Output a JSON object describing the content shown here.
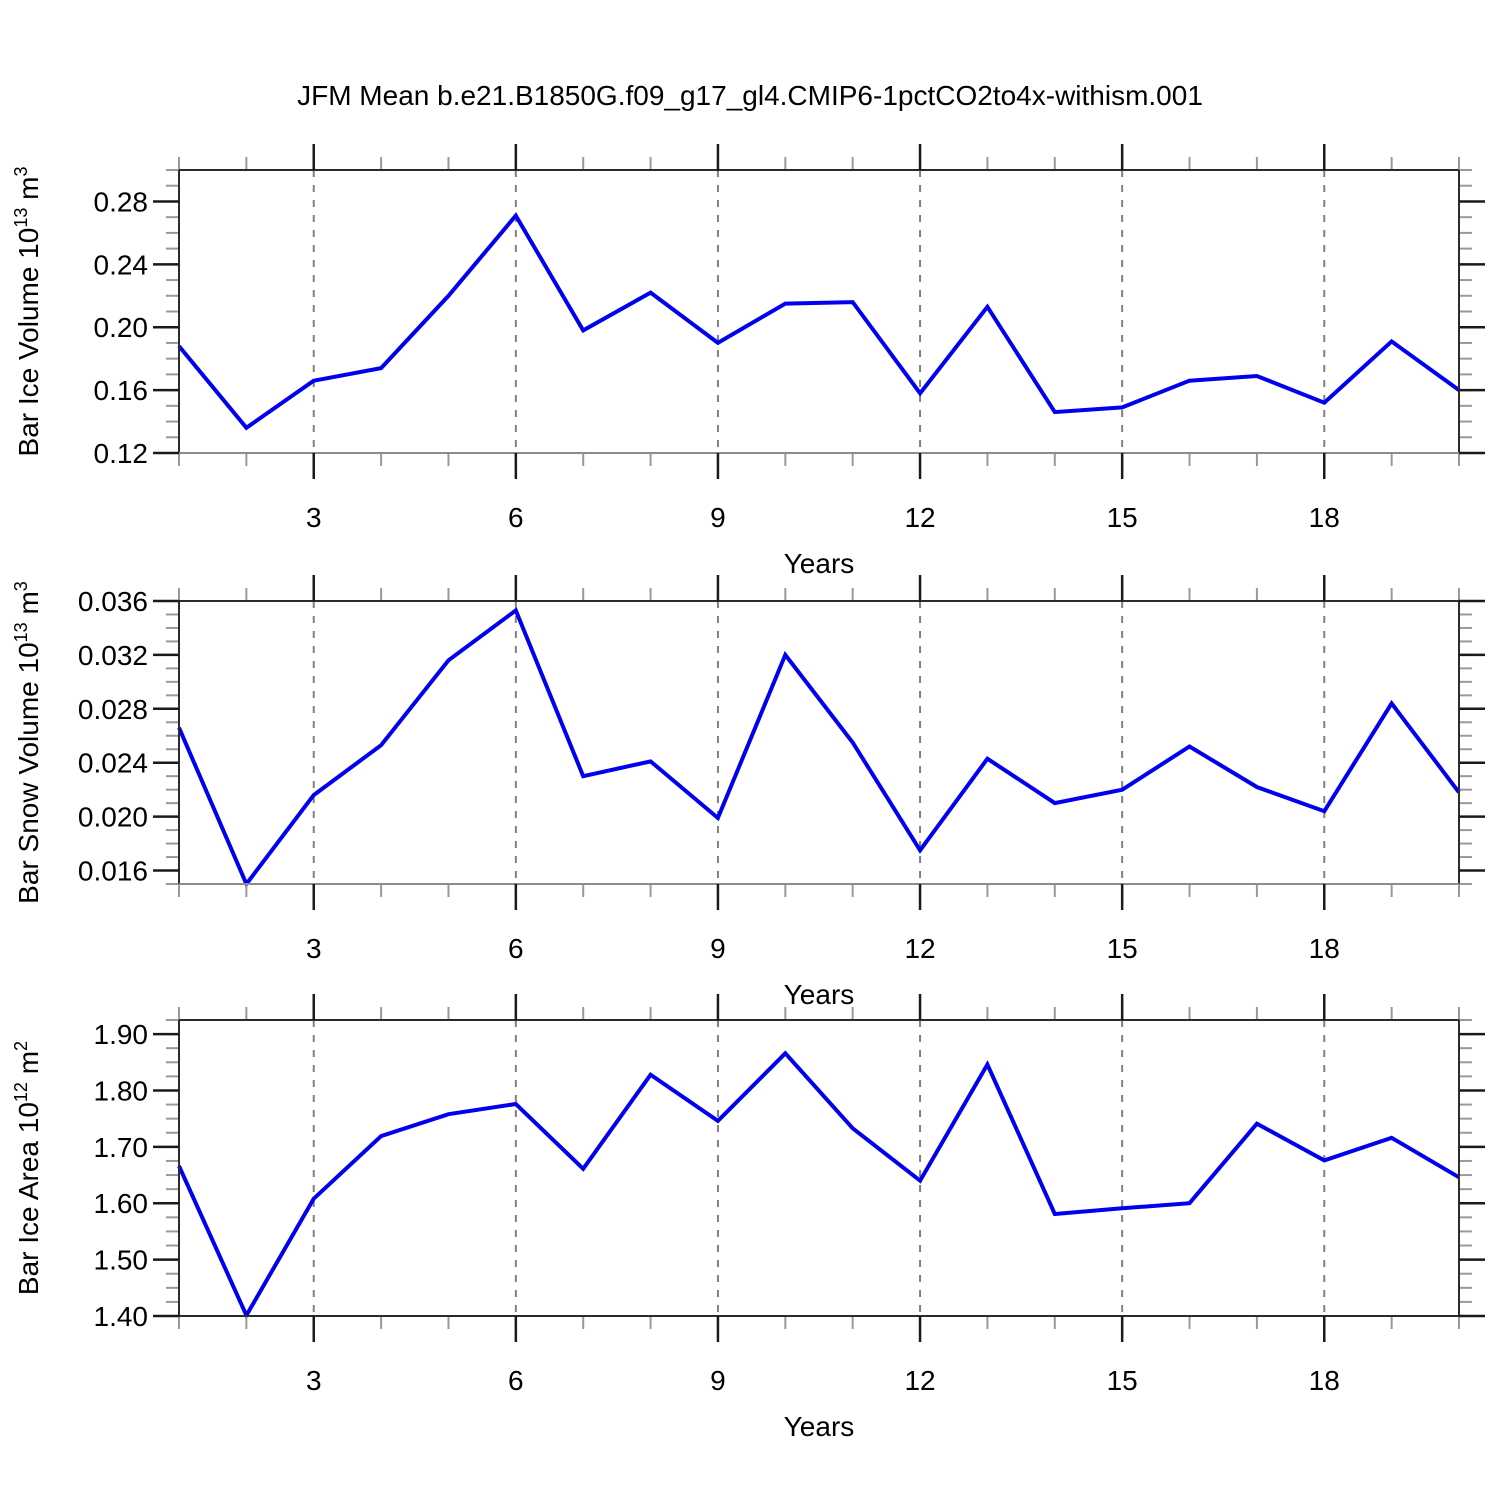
{
  "title": "JFM Mean b.e21.B1850G.f09_g17_gl4.CMIP6-1pctCO2to4x-withism.001",
  "x_axis": {
    "label": "Years",
    "range": [
      1,
      20
    ],
    "major_ticks": [
      3,
      6,
      9,
      12,
      15,
      18
    ],
    "minor_step": 1
  },
  "years": [
    1,
    2,
    3,
    4,
    5,
    6,
    7,
    8,
    9,
    10,
    11,
    12,
    13,
    14,
    15,
    16,
    17,
    18,
    19,
    20
  ],
  "colors": {
    "line": "#0000ee",
    "grid": "#808080",
    "frame": "#2b2b2b",
    "frame_bottom_gray": "#8c8c8c",
    "major_tick": "#1a1a1a",
    "minor_tick": "#999999",
    "text": "#000000"
  },
  "chart_data": [
    {
      "id": "bar-ice-volume",
      "type": "line",
      "name": "Bar Ice Volume 10^13 m^3",
      "ylabel_parts": [
        {
          "text": "Bar Ice Volume 10"
        },
        {
          "text": "13",
          "sup": true
        },
        {
          "text": " m"
        },
        {
          "text": "3",
          "sup": true
        }
      ],
      "ylim": [
        0.12,
        0.3
      ],
      "yticks": {
        "values": [
          0.12,
          0.16,
          0.2,
          0.24,
          0.28
        ],
        "labels": [
          "0.12",
          "0.16",
          "0.20",
          "0.24",
          "0.28"
        ]
      },
      "y_minor_step": 0.01,
      "bottom_axis": "gray",
      "values": [
        0.188,
        0.136,
        0.166,
        0.174,
        0.22,
        0.271,
        0.198,
        0.222,
        0.19,
        0.215,
        0.216,
        0.158,
        0.213,
        0.146,
        0.149,
        0.166,
        0.169,
        0.152,
        0.191,
        0.16
      ]
    },
    {
      "id": "bar-snow-volume",
      "type": "line",
      "name": "Bar Snow Volume 10^13 m^3",
      "ylabel_parts": [
        {
          "text": "Bar Snow Volume 10"
        },
        {
          "text": "13",
          "sup": true
        },
        {
          "text": " m"
        },
        {
          "text": "3",
          "sup": true
        }
      ],
      "ylim": [
        0.015,
        0.036
      ],
      "yticks": {
        "values": [
          0.016,
          0.02,
          0.024,
          0.028,
          0.032,
          0.036
        ],
        "labels": [
          "0.016",
          "0.020",
          "0.024",
          "0.028",
          "0.032",
          "0.036"
        ]
      },
      "y_minor_step": 0.001,
      "bottom_axis": "gray",
      "values": [
        0.0266,
        0.015,
        0.0216,
        0.0253,
        0.0316,
        0.0353,
        0.023,
        0.0241,
        0.0199,
        0.032,
        0.0255,
        0.0175,
        0.0243,
        0.021,
        0.022,
        0.0252,
        0.0222,
        0.0204,
        0.0284,
        0.0218
      ]
    },
    {
      "id": "bar-ice-area",
      "type": "line",
      "name": "Bar Ice Area 10^12 m^2",
      "ylabel_parts": [
        {
          "text": "Bar Ice Area 10"
        },
        {
          "text": "12",
          "sup": true
        },
        {
          "text": " m"
        },
        {
          "text": "2",
          "sup": true
        }
      ],
      "ylim": [
        1.4,
        1.925
      ],
      "yticks": {
        "values": [
          1.4,
          1.5,
          1.6,
          1.7,
          1.8,
          1.9
        ],
        "labels": [
          "1.40",
          "1.50",
          "1.60",
          "1.70",
          "1.80",
          "1.90"
        ]
      },
      "y_minor_step": 0.025,
      "bottom_axis": "dark",
      "values": [
        1.666,
        1.401,
        1.608,
        1.719,
        1.758,
        1.776,
        1.661,
        1.828,
        1.746,
        1.866,
        1.733,
        1.64,
        1.846,
        1.581,
        1.591,
        1.6,
        1.741,
        1.676,
        1.716,
        1.646
      ]
    }
  ]
}
